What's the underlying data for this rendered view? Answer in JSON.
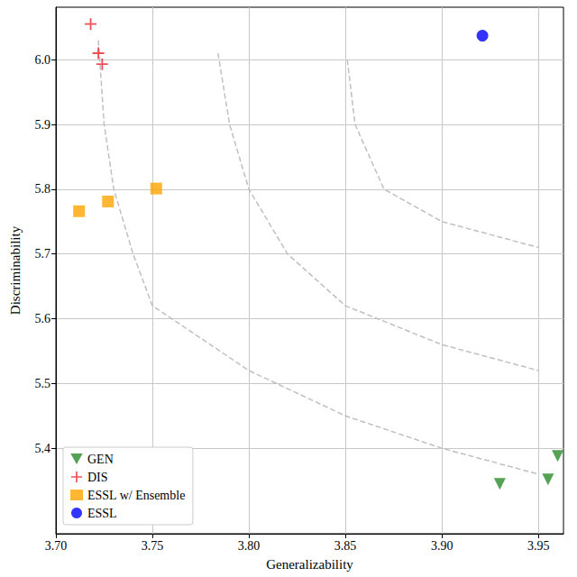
{
  "chart_data": {
    "type": "scatter",
    "x_label": "Generalizability",
    "y_label": "Discriminability",
    "xlim": [
      3.7,
      3.963
    ],
    "ylim": [
      5.268,
      6.081
    ],
    "xticks": [
      {
        "value": 3.7,
        "label": "3.70"
      },
      {
        "value": 3.75,
        "label": "3.75"
      },
      {
        "value": 3.8,
        "label": "3.80"
      },
      {
        "value": 3.85,
        "label": "3.85"
      },
      {
        "value": 3.9,
        "label": "3.90"
      },
      {
        "value": 3.95,
        "label": "3.95"
      }
    ],
    "yticks": [
      5.4,
      5.5,
      5.6,
      5.7,
      5.8,
      5.9,
      {
        "value": 6.0,
        "label": "6.0"
      }
    ],
    "grid": true,
    "legend": "lower left",
    "series": [
      {
        "type": "line",
        "color": "#c0c0c0",
        "line_style": "dashed",
        "marker": "none",
        "x": [
          3.722,
          3.725,
          3.73,
          3.74,
          3.75,
          3.8,
          3.85,
          3.9,
          3.95
        ],
        "values": [
          6.03,
          5.9,
          5.8,
          5.7,
          5.62,
          5.52,
          5.45,
          5.4,
          5.36
        ]
      },
      {
        "type": "line",
        "color": "#c0c0c0",
        "line_style": "dashed",
        "marker": "none",
        "x": [
          3.784,
          3.79,
          3.8,
          3.82,
          3.85,
          3.9,
          3.95
        ],
        "values": [
          6.01,
          5.9,
          5.8,
          5.7,
          5.62,
          5.56,
          5.52
        ]
      },
      {
        "type": "line",
        "color": "#c0c0c0",
        "line_style": "dashed",
        "marker": "none",
        "x": [
          3.851,
          3.855,
          3.87,
          3.9,
          3.95
        ],
        "values": [
          6.0,
          5.9,
          5.8,
          5.75,
          5.71
        ]
      },
      {
        "name": "GEN",
        "type": "scatter",
        "color": "#2a8a2a",
        "marker": "triangle_down",
        "x": [
          3.93,
          3.955,
          3.96
        ],
        "values": [
          5.345,
          5.352,
          5.388
        ]
      },
      {
        "name": "DIS",
        "type": "scatter",
        "color": "#e8262a",
        "marker": "plus",
        "x": [
          3.718,
          3.722,
          3.724
        ],
        "values": [
          6.055,
          6.01,
          5.993
        ]
      },
      {
        "name": "ESSL w/ Ensemble",
        "type": "scatter",
        "color": "#ffa500",
        "marker": "square",
        "x": [
          3.712,
          3.727,
          3.752
        ],
        "values": [
          5.766,
          5.781,
          5.801
        ]
      },
      {
        "name": "ESSL",
        "type": "scatter",
        "color": "#0000ff",
        "marker": "circle",
        "x": [
          3.921
        ],
        "values": [
          6.037
        ]
      }
    ]
  }
}
